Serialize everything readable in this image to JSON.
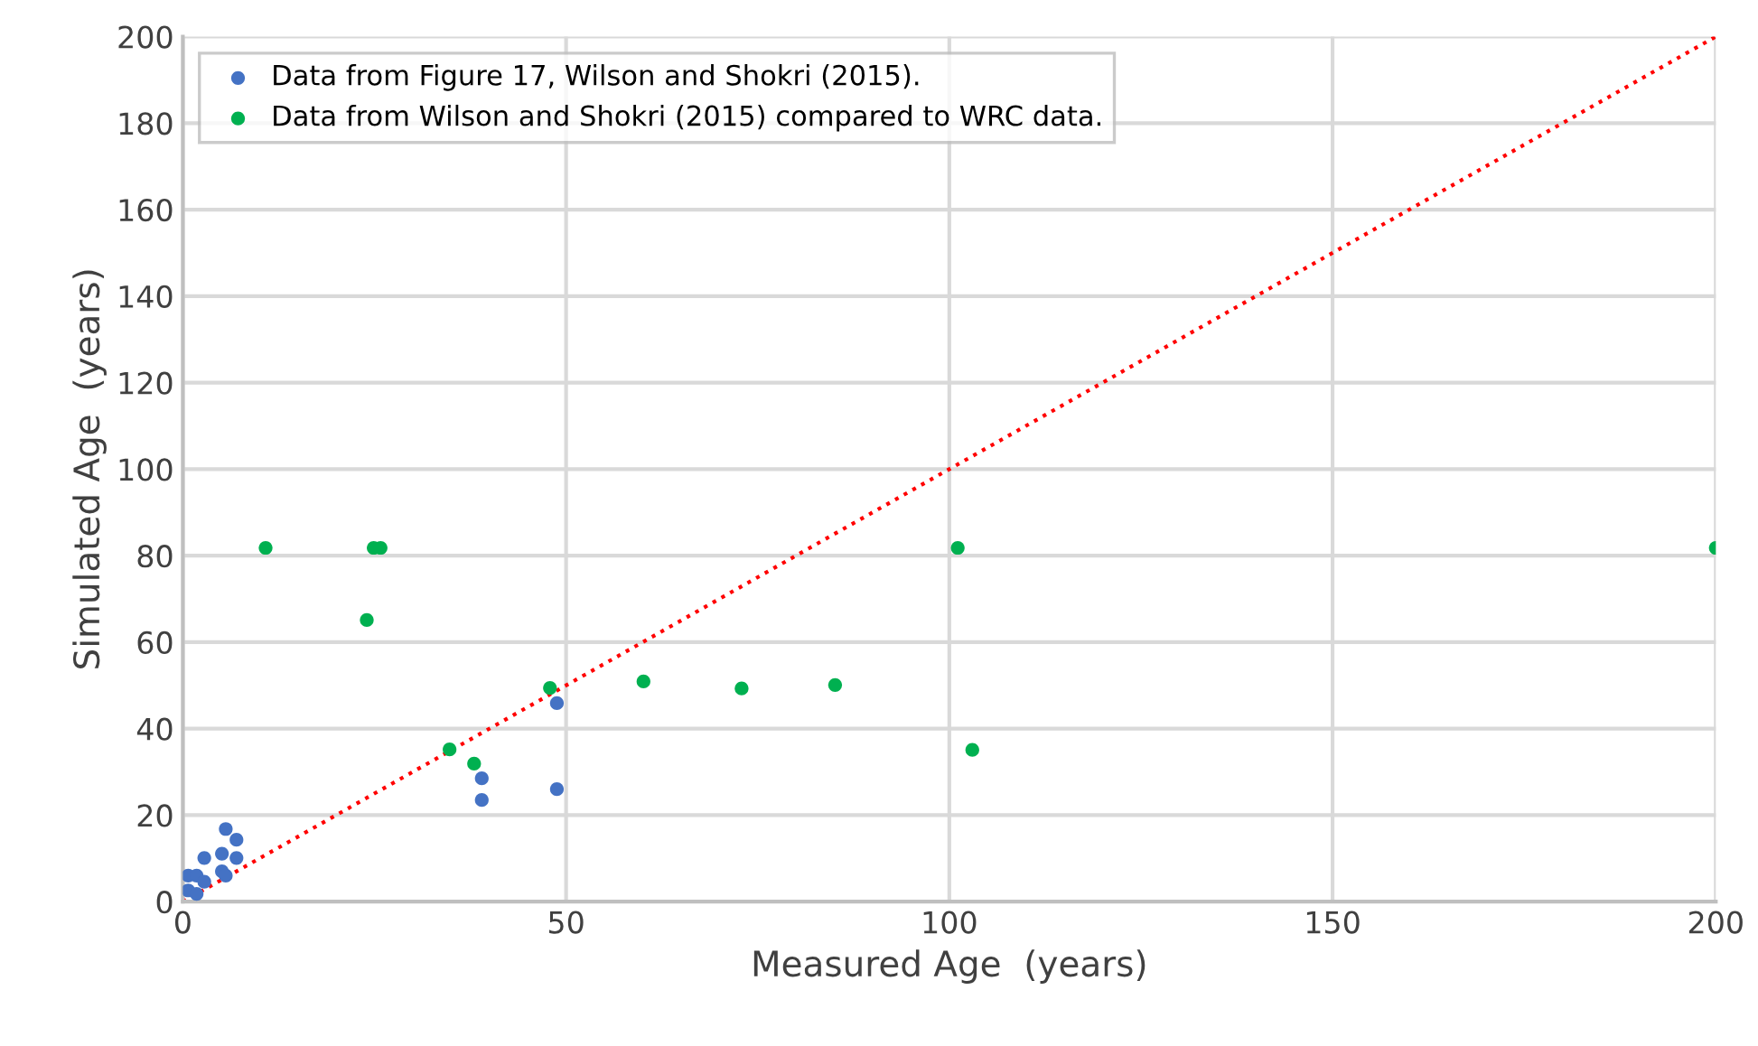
{
  "chart_data": {
    "type": "scatter",
    "xlabel": "Measured Age  (years)",
    "ylabel": "Simulated Age  (years)",
    "xlim": [
      0,
      200
    ],
    "ylim": [
      0,
      200
    ],
    "xticks": [
      0,
      50,
      100,
      150,
      200
    ],
    "yticks": [
      0,
      20,
      40,
      60,
      80,
      100,
      120,
      140,
      160,
      180,
      200
    ],
    "grid": true,
    "legend": "top left",
    "marker": "circle",
    "series": [
      {
        "name": "Data from Figure 17, Wilson and Shokri (2015).",
        "color": "#4472c4",
        "x": [
          48.8,
          39.0,
          39.0,
          48.8,
          5.6,
          7.0,
          2.8,
          5.1,
          7.0,
          5.1,
          5.6,
          0.7,
          1.8,
          2.8,
          0.7,
          1.8
        ],
        "values": [
          45.9,
          28.5,
          23.5,
          26.0,
          16.8,
          14.3,
          10.1,
          11.1,
          10.1,
          7.0,
          6.0,
          6.0,
          6.0,
          4.6,
          2.6,
          1.8
        ]
      },
      {
        "name": "Data from Wilson and Shokri (2015) compared to WRC data.",
        "color": "#00b050",
        "x": [
          47.9,
          34.8,
          38.0,
          10.8,
          24.0,
          24.9,
          25.8,
          60.1,
          72.9,
          85.1,
          101.1,
          103.0,
          200
        ],
        "values": [
          49.4,
          35.2,
          31.9,
          81.8,
          65.1,
          81.8,
          81.8,
          50.9,
          49.3,
          50.1,
          81.8,
          35.1,
          81.8
        ]
      },
      {
        "type": "line",
        "line_style": "dotted",
        "marker": "none",
        "color": "#ff0000",
        "x": [
          0,
          200
        ],
        "values": [
          0,
          200
        ]
      }
    ]
  }
}
